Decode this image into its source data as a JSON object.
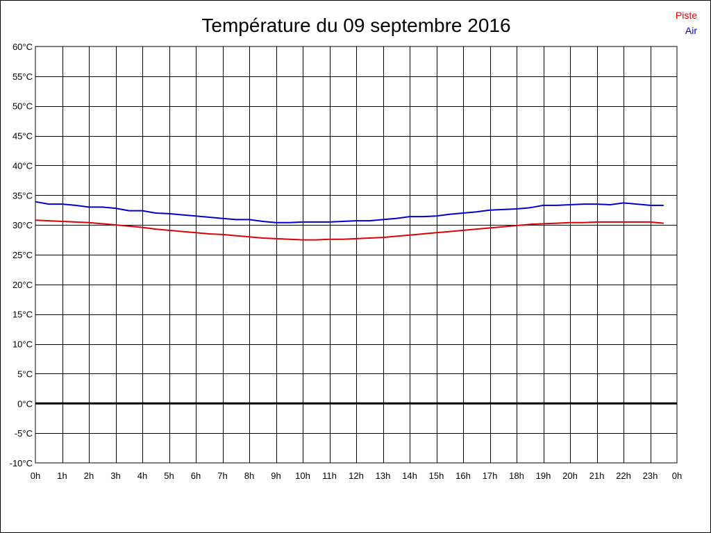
{
  "chart_data": {
    "type": "line",
    "title": "Température du 09 septembre 2016",
    "x_tick_labels": [
      "0h",
      "1h",
      "2h",
      "3h",
      "4h",
      "5h",
      "6h",
      "7h",
      "8h",
      "9h",
      "10h",
      "11h",
      "12h",
      "13h",
      "14h",
      "15h",
      "16h",
      "17h",
      "18h",
      "19h",
      "20h",
      "21h",
      "22h",
      "23h",
      "0h"
    ],
    "y_tick_labels": [
      "60°C",
      "55°C",
      "50°C",
      "45°C",
      "40°C",
      "35°C",
      "30°C",
      "25°C",
      "20°C",
      "15°C",
      "10°C",
      "5°C",
      "0°C",
      "-5°C",
      "-10°C"
    ],
    "xlim": [
      0,
      24
    ],
    "ylim": [
      -10,
      60
    ],
    "grid": true,
    "zero_line": true,
    "legend_position": "top-right",
    "series": [
      {
        "name": "Piste",
        "color": "#dd0000",
        "x": [
          0,
          0.5,
          1,
          1.5,
          2,
          2.5,
          3,
          3.5,
          4,
          4.5,
          5,
          5.5,
          6,
          6.5,
          7,
          7.5,
          8,
          8.5,
          9,
          9.5,
          10,
          10.5,
          11,
          11.5,
          12,
          12.5,
          13,
          13.5,
          14,
          14.5,
          15,
          15.5,
          16,
          16.5,
          17,
          17.5,
          18,
          18.5,
          19,
          19.5,
          20,
          20.5,
          21,
          21.5,
          22,
          22.5,
          23,
          23.5
        ],
        "values": [
          30.8,
          30.7,
          30.6,
          30.5,
          30.4,
          30.2,
          30.0,
          29.8,
          29.6,
          29.3,
          29.1,
          28.9,
          28.7,
          28.5,
          28.4,
          28.2,
          28.0,
          27.8,
          27.7,
          27.6,
          27.5,
          27.5,
          27.6,
          27.6,
          27.7,
          27.8,
          27.9,
          28.1,
          28.3,
          28.5,
          28.7,
          28.9,
          29.1,
          29.3,
          29.5,
          29.7,
          29.9,
          30.1,
          30.2,
          30.3,
          30.4,
          30.4,
          30.5,
          30.5,
          30.5,
          30.5,
          30.5,
          30.3
        ]
      },
      {
        "name": "Air",
        "color": "#0000cc",
        "x": [
          0,
          0.5,
          1,
          1.5,
          2,
          2.5,
          3,
          3.5,
          4,
          4.5,
          5,
          5.5,
          6,
          6.5,
          7,
          7.5,
          8,
          8.5,
          9,
          9.5,
          10,
          10.5,
          11,
          11.5,
          12,
          12.5,
          13,
          13.5,
          14,
          14.5,
          15,
          15.5,
          16,
          16.5,
          17,
          17.5,
          18,
          18.5,
          19,
          19.5,
          20,
          20.5,
          21,
          21.5,
          22,
          22.5,
          23,
          23.5
        ],
        "values": [
          33.9,
          33.5,
          33.5,
          33.3,
          33.0,
          33.0,
          32.8,
          32.4,
          32.4,
          32.0,
          31.9,
          31.7,
          31.5,
          31.3,
          31.1,
          30.9,
          30.9,
          30.6,
          30.4,
          30.4,
          30.5,
          30.5,
          30.5,
          30.6,
          30.7,
          30.7,
          30.9,
          31.1,
          31.4,
          31.4,
          31.5,
          31.8,
          32.0,
          32.2,
          32.5,
          32.6,
          32.7,
          32.9,
          33.3,
          33.3,
          33.4,
          33.5,
          33.5,
          33.4,
          33.7,
          33.5,
          33.3,
          33.3
        ]
      }
    ]
  }
}
